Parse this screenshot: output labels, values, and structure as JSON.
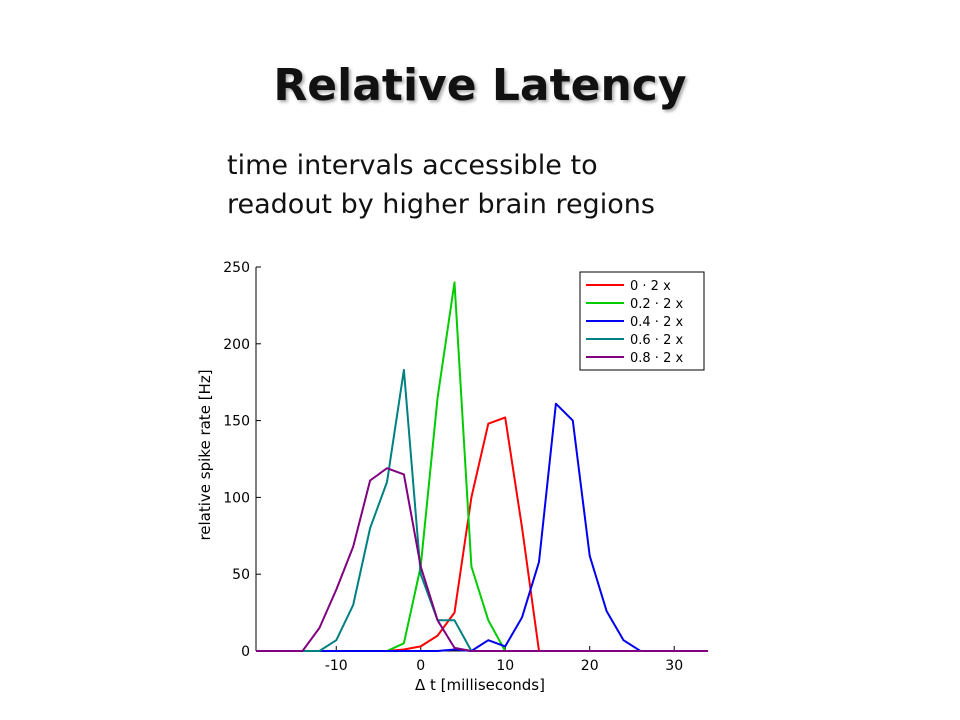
{
  "slide": {
    "title": "Relative Latency",
    "subtitle_lines": [
      "time intervals accessible to",
      "readout by higher brain regions"
    ]
  },
  "chart_data": {
    "type": "line",
    "xlabel": "Δ t [milliseconds]",
    "ylabel": "relative spike rate [Hz]",
    "xlim": [
      -19.5,
      34
    ],
    "ylim": [
      0,
      250
    ],
    "xticks": [
      -10,
      0,
      10,
      20,
      30
    ],
    "yticks": [
      0,
      50,
      100,
      150,
      200,
      250
    ],
    "grid": false,
    "legend_position": "top-right",
    "series": [
      {
        "name": "0 · 2 x",
        "color": "#ff0000",
        "x": [
          -19.5,
          -4,
          -2,
          0,
          2,
          4,
          6,
          8,
          10,
          12,
          14,
          34
        ],
        "y": [
          0,
          0,
          1,
          3,
          10,
          25,
          100,
          148,
          152,
          80,
          0,
          0
        ]
      },
      {
        "name": "0.2 · 2 x",
        "color": "#00cc00",
        "x": [
          -19.5,
          -4,
          -2,
          0,
          2,
          4,
          6,
          8,
          10,
          34
        ],
        "y": [
          0,
          0,
          5,
          55,
          165,
          240,
          55,
          20,
          0,
          0
        ]
      },
      {
        "name": "0.4 · 2 x",
        "color": "#0000ee",
        "x": [
          -19.5,
          2,
          4,
          6,
          8,
          10,
          12,
          14,
          16,
          18,
          20,
          22,
          24,
          26,
          34
        ],
        "y": [
          0,
          0,
          1,
          0,
          7,
          3,
          22,
          58,
          161,
          150,
          62,
          26,
          7,
          0,
          0
        ]
      },
      {
        "name": "0.6 · 2 x",
        "color": "#008080",
        "x": [
          -19.5,
          -12,
          -10,
          -8,
          -6,
          -4,
          -2,
          0,
          2,
          4,
          6,
          34
        ],
        "y": [
          0,
          0,
          7,
          30,
          80,
          110,
          183,
          50,
          20,
          20,
          0,
          0
        ]
      },
      {
        "name": "0.8 · 2 x",
        "color": "#800080",
        "x": [
          -19.5,
          -14,
          -12,
          -10,
          -8,
          -6,
          -4,
          -2,
          0,
          2,
          4,
          6,
          34
        ],
        "y": [
          0,
          0,
          15,
          40,
          68,
          111,
          119,
          115,
          55,
          20,
          2,
          0,
          0
        ]
      }
    ]
  }
}
